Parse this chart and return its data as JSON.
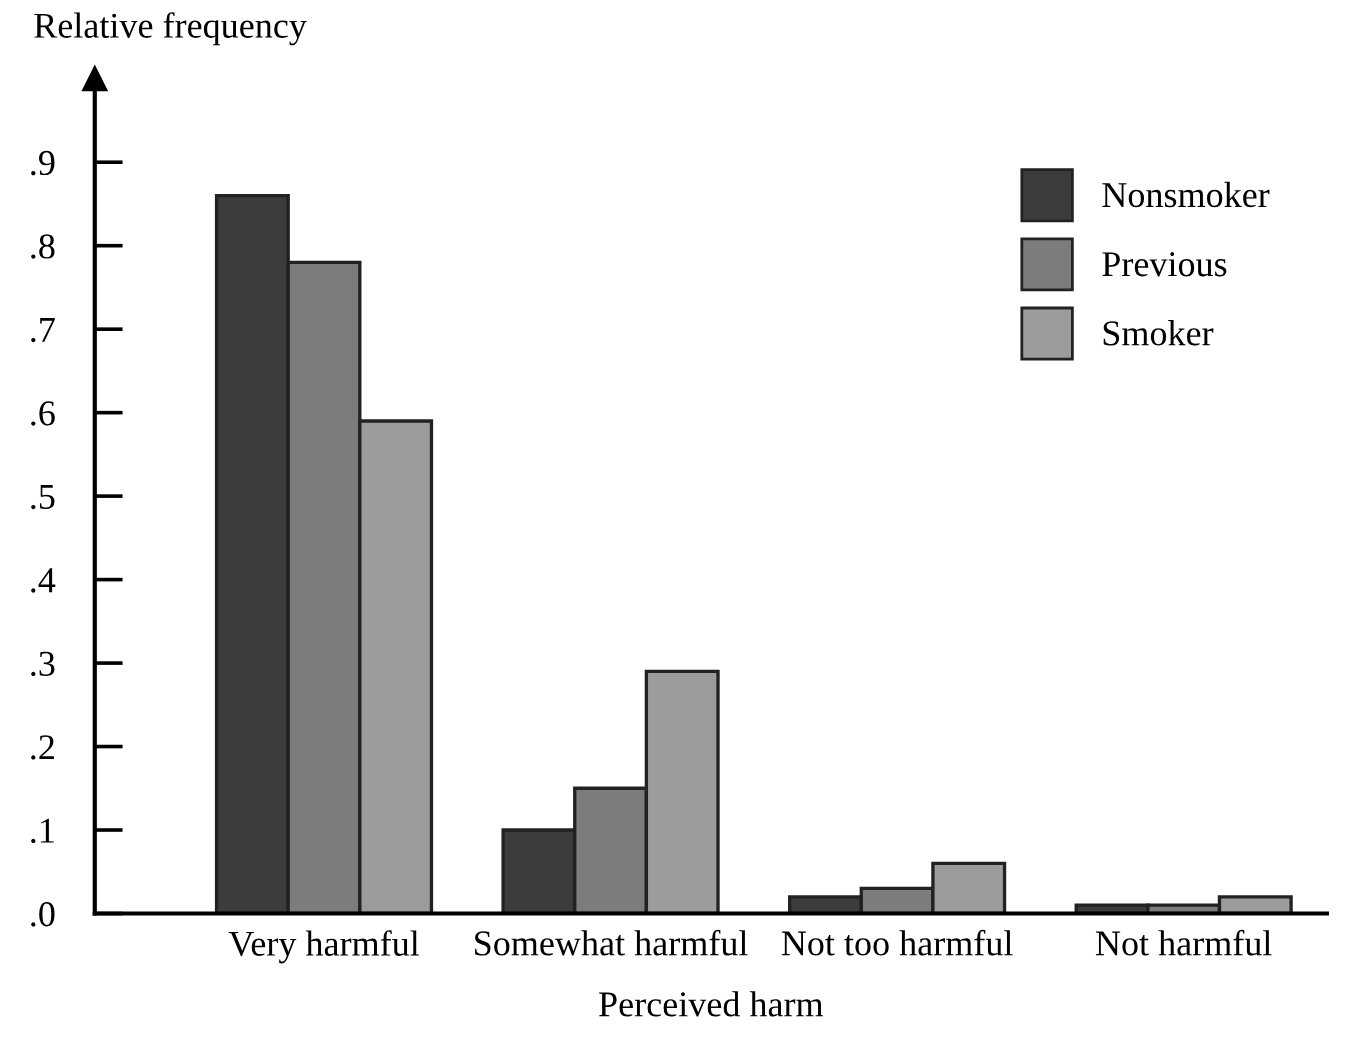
{
  "chart_data": {
    "type": "bar",
    "ylabel": "Relative frequency",
    "xlabel": "Perceived harm",
    "categories": [
      "Very harmful",
      "Somewhat harmful",
      "Not too harmful",
      "Not harmful"
    ],
    "series": [
      {
        "name": "Nonsmoker",
        "color": "#3c3c3c",
        "values": [
          0.86,
          0.1,
          0.02,
          0.01
        ]
      },
      {
        "name": "Previous",
        "color": "#7c7c7c",
        "values": [
          0.78,
          0.15,
          0.03,
          0.01
        ]
      },
      {
        "name": "Smoker",
        "color": "#9c9c9c",
        "values": [
          0.59,
          0.29,
          0.06,
          0.02
        ]
      }
    ],
    "ylim": [
      0,
      1.0
    ],
    "yticks": [
      {
        "value": 0,
        "label": ".0"
      },
      {
        "value": 0.1,
        "label": ".1"
      },
      {
        "value": 0.2,
        "label": ".2"
      },
      {
        "value": 0.3,
        "label": ".3"
      },
      {
        "value": 0.4,
        "label": ".4"
      },
      {
        "value": 0.5,
        "label": ".5"
      },
      {
        "value": 0.6,
        "label": ".6"
      },
      {
        "value": 0.7,
        "label": ".7"
      },
      {
        "value": 0.8,
        "label": ".8"
      },
      {
        "value": 0.9,
        "label": ".9"
      }
    ],
    "legend": "top right",
    "grid": false
  }
}
